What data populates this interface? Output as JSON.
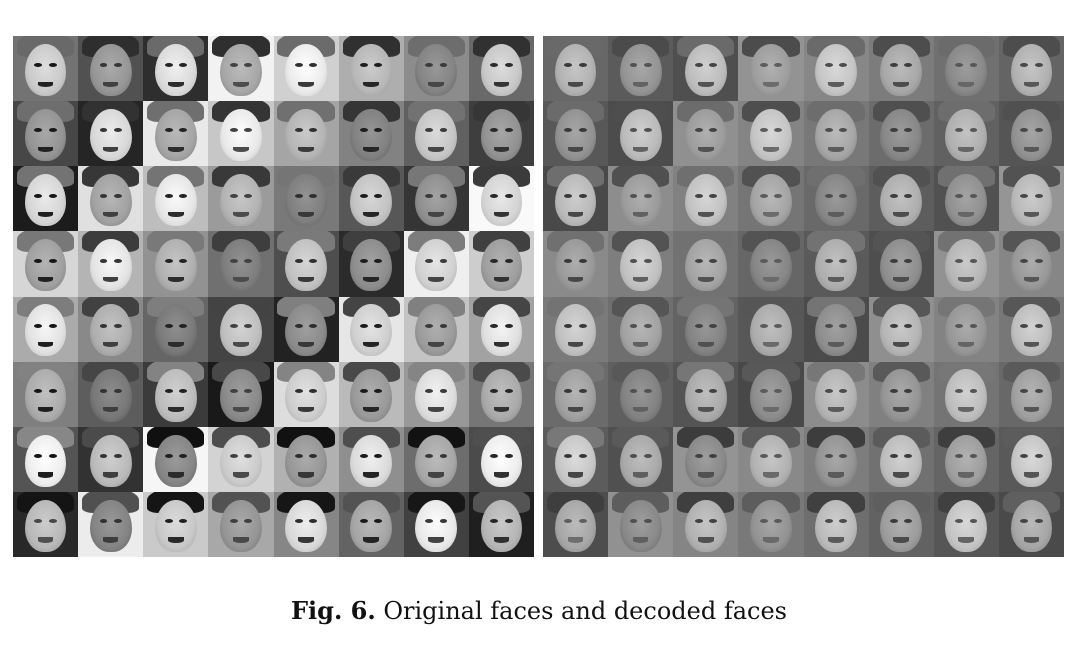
{
  "figure": {
    "caption_label": "Fig. 6.",
    "caption_text": "Original faces and decoded faces"
  },
  "panels": [
    {
      "name": "original-faces",
      "rows": 8,
      "cols": 8,
      "contrast": "high"
    },
    {
      "name": "decoded-faces",
      "rows": 8,
      "cols": 8,
      "contrast": "low"
    }
  ],
  "colors": {
    "background": "#ffffff",
    "caption_text": "#111111"
  }
}
